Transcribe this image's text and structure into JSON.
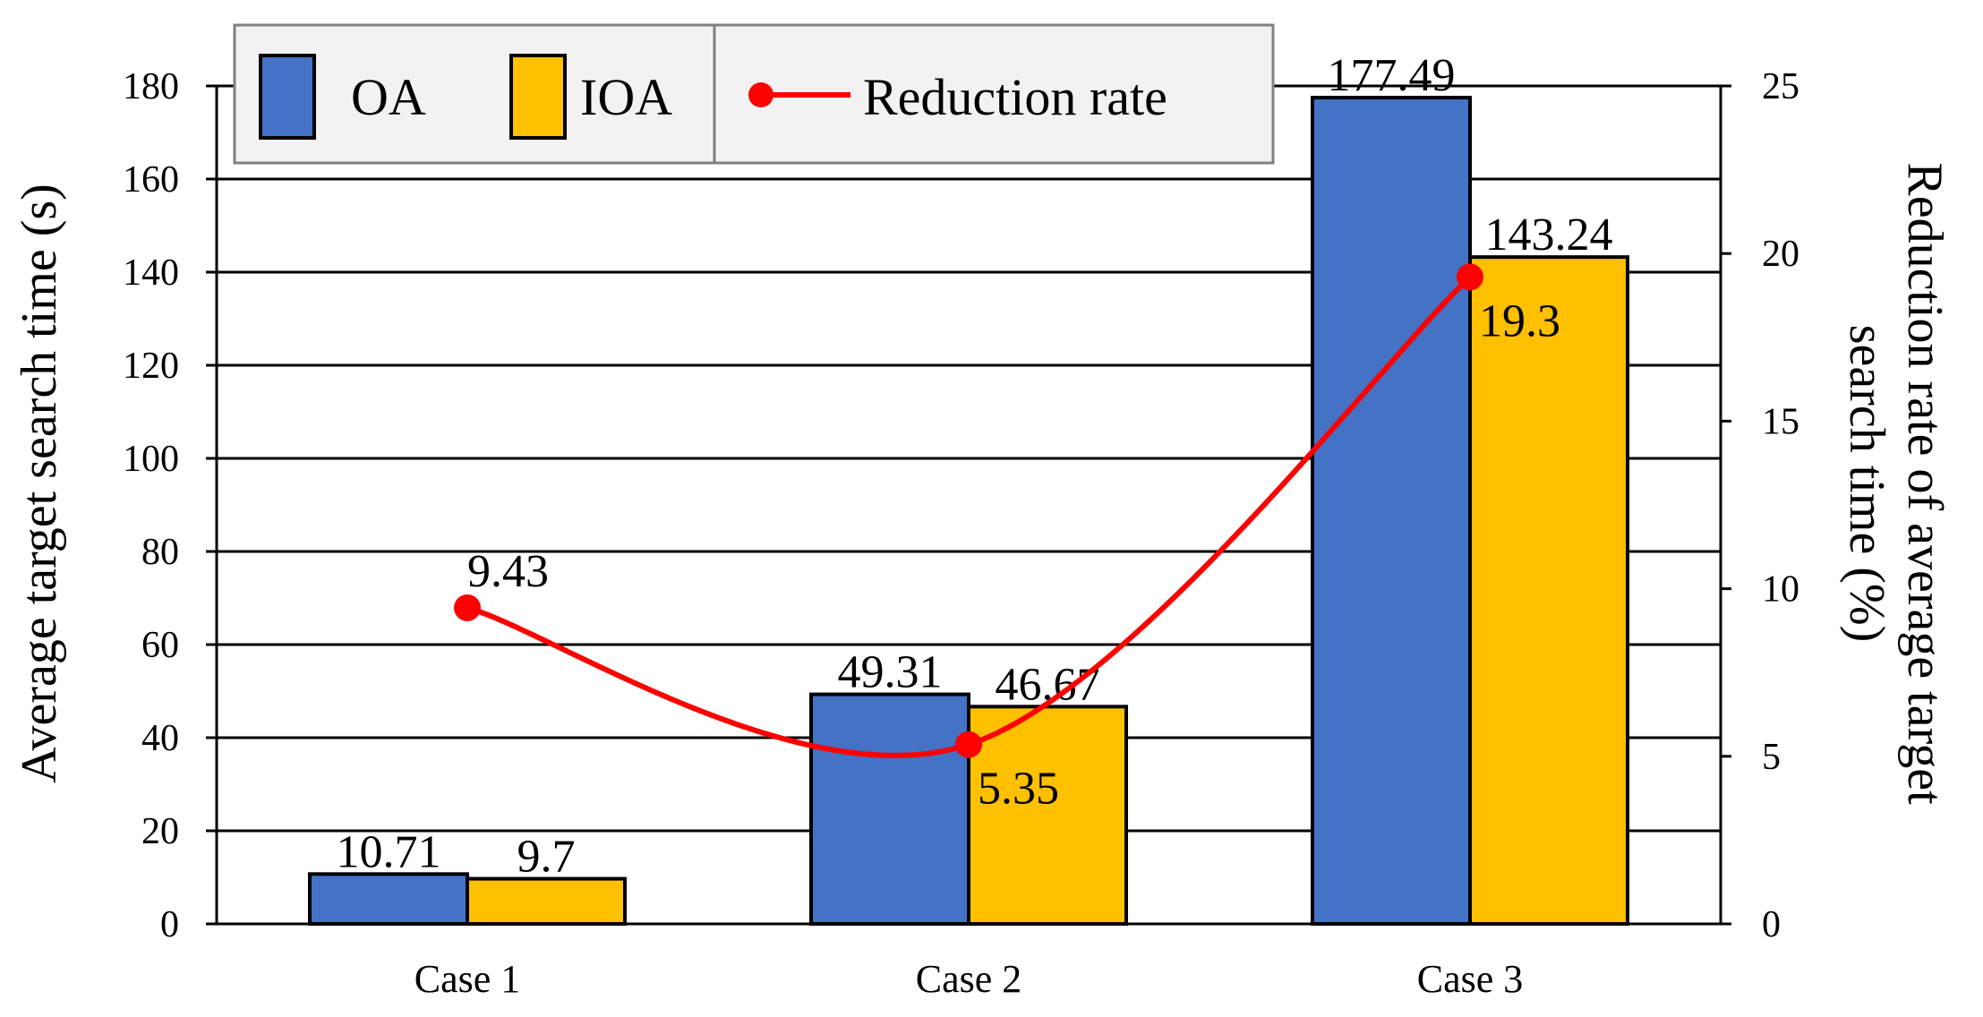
{
  "chart_data": {
    "type": "bar",
    "categories": [
      "Case 1",
      "Case 2",
      "Case 3"
    ],
    "series": [
      {
        "name": "OA",
        "axis": "left",
        "values": [
          10.71,
          49.31,
          177.49
        ],
        "labels": [
          "10.71",
          "49.31",
          "177.49"
        ],
        "color": "#4472C4"
      },
      {
        "name": "IOA",
        "axis": "left",
        "values": [
          9.7,
          46.67,
          143.24
        ],
        "labels": [
          "9.7",
          "46.67",
          "143.24"
        ],
        "color": "#FFC000"
      }
    ],
    "line_series": {
      "name": "Reduction rate",
      "axis": "right",
      "values": [
        9.43,
        5.35,
        19.3
      ],
      "labels": [
        "9.43",
        "5.35",
        "19.3"
      ],
      "color": "#FF0000"
    },
    "ylabel": "Average target search time (s)",
    "y2label_line1": "Reduction rate of average target",
    "y2label_line2": "search time (%)",
    "ylim": [
      0,
      180
    ],
    "y2lim": [
      0,
      25
    ],
    "yticks": [
      "0",
      "20",
      "40",
      "60",
      "80",
      "100",
      "120",
      "140",
      "160",
      "180"
    ],
    "y2ticks": [
      "0",
      "5",
      "10",
      "15",
      "20",
      "25"
    ],
    "grid": true,
    "legend_position": "top-left"
  }
}
